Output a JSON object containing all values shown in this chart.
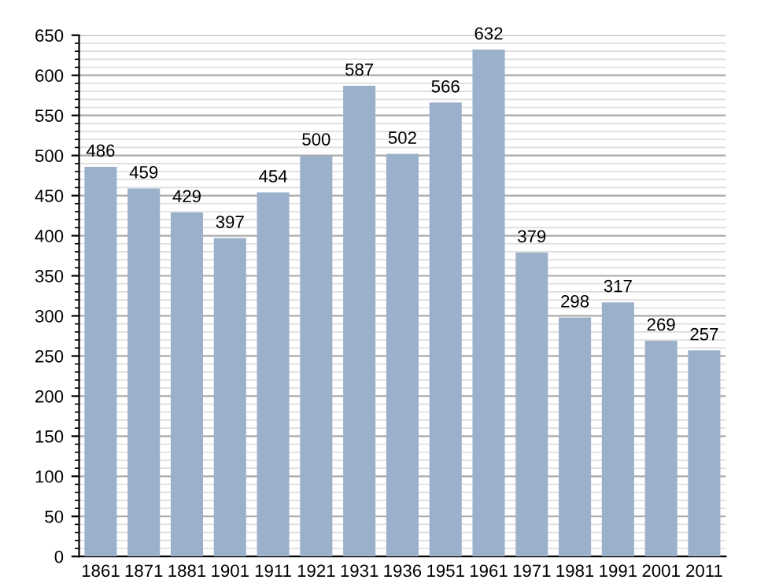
{
  "chart_data": {
    "type": "bar",
    "categories": [
      "1861",
      "1871",
      "1881",
      "1901",
      "1911",
      "1921",
      "1931",
      "1936",
      "1951",
      "1961",
      "1971",
      "1981",
      "1991",
      "2001",
      "2011"
    ],
    "values": [
      486,
      459,
      429,
      397,
      454,
      500,
      587,
      502,
      566,
      632,
      379,
      298,
      317,
      269,
      257
    ],
    "color": "#9bb1cb",
    "ylim": [
      0,
      650
    ],
    "yticks": [
      0,
      50,
      100,
      150,
      200,
      250,
      300,
      350,
      400,
      450,
      500,
      550,
      600,
      650
    ],
    "grid": "y",
    "data_labels": true
  }
}
